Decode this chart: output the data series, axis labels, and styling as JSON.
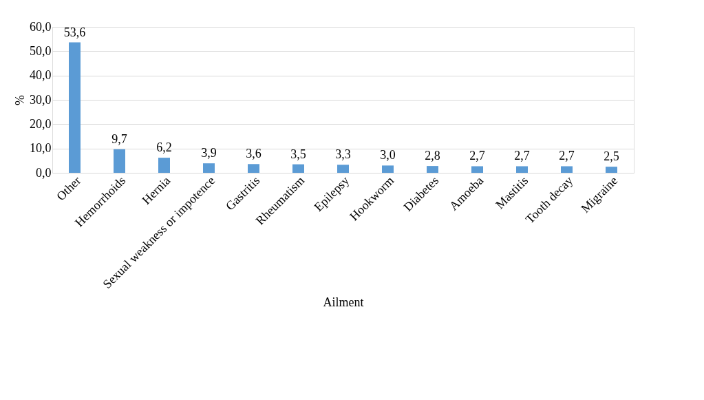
{
  "chart_data": {
    "type": "bar",
    "xlabel": "Ailment",
    "ylabel": "%",
    "categories": [
      "Other",
      "Hemorrhoids",
      "Hernia",
      "Sexual weakness or impotence",
      "Gastritis",
      "Rheumatism",
      "Epilepsy",
      "Hookworm",
      "Diabetes",
      "Amoeba",
      "Mastitis",
      "Tooth decay",
      "Migraine"
    ],
    "values": [
      53.6,
      9.7,
      6.2,
      3.9,
      3.6,
      3.5,
      3.3,
      3.0,
      2.8,
      2.7,
      2.7,
      2.7,
      2.5
    ],
    "value_labels": [
      "53,6",
      "9,7",
      "6,2",
      "3,9",
      "3,6",
      "3,5",
      "3,3",
      "3,0",
      "2,8",
      "2,7",
      "2,7",
      "2,7",
      "2,5"
    ],
    "color": "#5b9bd5",
    "ylim": [
      0,
      60
    ],
    "yticks": [
      {
        "value": 0,
        "label": "0,0"
      },
      {
        "value": 10,
        "label": "10,0"
      },
      {
        "value": 20,
        "label": "20,0"
      },
      {
        "value": 30,
        "label": "30,0"
      },
      {
        "value": 40,
        "label": "40,0"
      },
      {
        "value": 50,
        "label": "50,0"
      },
      {
        "value": 60,
        "label": "60,0"
      }
    ],
    "grid": "y"
  }
}
